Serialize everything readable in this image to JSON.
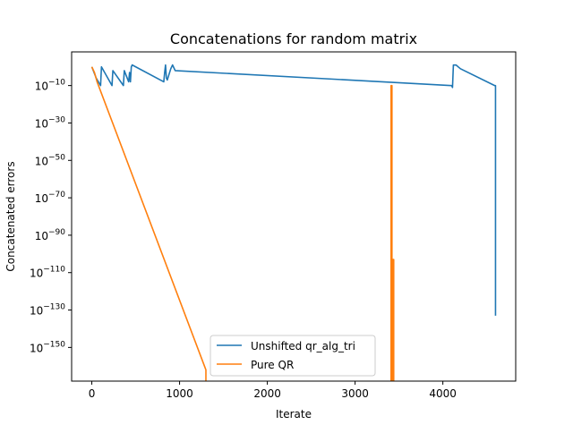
{
  "chart_data": {
    "type": "line",
    "title": "Concatenations for random matrix",
    "xlabel": "Iterate",
    "ylabel": "Concatenated errors",
    "yscale": "log",
    "xlim": [
      -230,
      4830
    ],
    "ylim_exp": [
      -168,
      8
    ],
    "x_ticks": [
      0,
      1000,
      2000,
      3000,
      4000
    ],
    "y_tick_exps": [
      -150,
      -130,
      -110,
      -90,
      -70,
      -50,
      -30,
      -10
    ],
    "y_tick_base": "10",
    "grid": false,
    "legend_position": "lower-center",
    "series": [
      {
        "name": "Unshifted qr_alg_tri",
        "color": "#1f77b4",
        "points": [
          [
            0,
            0
          ],
          [
            50,
            -6
          ],
          [
            100,
            -10
          ],
          [
            110,
            0
          ],
          [
            230,
            -10
          ],
          [
            240,
            -2
          ],
          [
            360,
            -10
          ],
          [
            370,
            -2
          ],
          [
            420,
            -8
          ],
          [
            430,
            -3
          ],
          [
            440,
            -8
          ],
          [
            450,
            0
          ],
          [
            460,
            1
          ],
          [
            820,
            -8
          ],
          [
            830,
            -3
          ],
          [
            840,
            1
          ],
          [
            850,
            -6
          ],
          [
            860,
            -7
          ],
          [
            900,
            -1
          ],
          [
            920,
            1
          ],
          [
            950,
            -2
          ],
          [
            4100,
            -10
          ],
          [
            4110,
            -11
          ],
          [
            4120,
            1
          ],
          [
            4150,
            1
          ],
          [
            4200,
            -1
          ],
          [
            4590,
            -10
          ],
          [
            4600,
            -10
          ],
          [
            4600,
            -133
          ]
        ]
      },
      {
        "name": "Pure QR",
        "color": "#ff7f0e",
        "points": [
          [
            0,
            0
          ],
          [
            30,
            -3
          ],
          [
            60,
            -8
          ],
          [
            1300,
            -162
          ],
          [
            1300,
            -170
          ],
          [
            3410,
            -170
          ],
          [
            3410,
            -10
          ],
          [
            3420,
            -10
          ],
          [
            3420,
            -170
          ],
          [
            3430,
            -170
          ],
          [
            3430,
            -103
          ],
          [
            3440,
            -103
          ],
          [
            3440,
            -170
          ]
        ]
      }
    ]
  }
}
